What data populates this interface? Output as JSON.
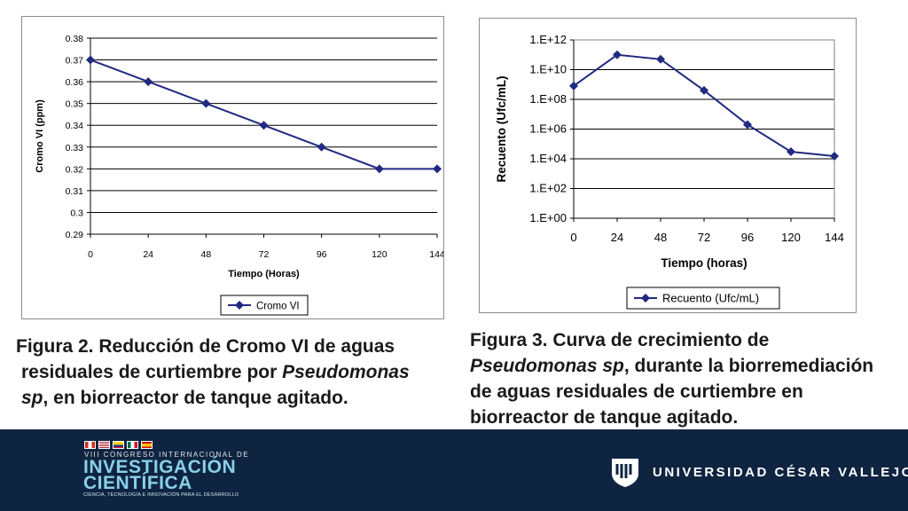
{
  "chart_data": [
    {
      "type": "line",
      "title": "",
      "xlabel": "Tiempo (Horas)",
      "ylabel": "Cromo VI (ppm)",
      "x": [
        0,
        24,
        48,
        72,
        96,
        120,
        144
      ],
      "x_tick_labels": [
        "0",
        "24",
        "48",
        "72",
        "96",
        "120",
        "144"
      ],
      "y_tick_labels": [
        "0.38",
        "0.37",
        "0.36",
        "0.35",
        "0.34",
        "0.33",
        "0.32",
        "0.31",
        "0.3",
        "0.29"
      ],
      "ylim": [
        0.29,
        0.38
      ],
      "grid": true,
      "legend_position": "bottom",
      "series": [
        {
          "name": "Cromo VI",
          "values": [
            0.37,
            0.36,
            0.35,
            0.34,
            0.33,
            0.32,
            0.32
          ]
        }
      ],
      "colors": {
        "line": "#1f2a80",
        "axis": "#000000",
        "grid": "#000000"
      }
    },
    {
      "type": "line",
      "title": "",
      "xlabel": "Tiempo (horas)",
      "ylabel": "Recuento (Ufc/mL)",
      "y_scale": "log",
      "x": [
        0,
        24,
        48,
        72,
        96,
        120,
        144
      ],
      "x_tick_labels": [
        "0",
        "24",
        "48",
        "72",
        "96",
        "120",
        "144"
      ],
      "y_tick_labels": [
        "1.E+12",
        "1.E+10",
        "1.E+08",
        "1.E+06",
        "1.E+04",
        "1.E+02",
        "1.E+00"
      ],
      "ylim": [
        1,
        1000000000000.0
      ],
      "grid": true,
      "legend_position": "bottom",
      "series": [
        {
          "name": "Recuento (Ufc/mL)",
          "values": [
            800000000.0,
            100000000000.0,
            50000000000.0,
            400000000.0,
            2000000.0,
            30000.0,
            15000.0
          ]
        }
      ],
      "colors": {
        "line": "#1f2a80",
        "axis": "#000000",
        "grid": "#000000",
        "plot_bg": "#ffffff"
      }
    }
  ],
  "captions": {
    "figure2": {
      "line1": "Figura 2. Reducción de Cromo VI de aguas",
      "line2_a": "residuales  de curtiembre por ",
      "line2_b": "Pseudomonas",
      "line3_a": "sp",
      "line3_b": ", en biorreactor de tanque agitado."
    },
    "figure3": {
      "line1": "Figura 3. Curva de crecimiento de",
      "line2_a": "Pseudomonas sp",
      "line2_b": ", durante la biorremediación",
      "line3": "de aguas residuales de curtiembre en",
      "line4": "biorreactor de tanque agitado."
    }
  },
  "footer": {
    "congress_line": "VIII CONGRESO INTERNACIONAL DE",
    "congress_title1": "INVESTIGACIÓN",
    "congress_title2": "CIENTÍFICA",
    "congress_tagline": "CIENCIA, TECNOLOGÍA E INNOVACIÓN PARA EL DESARROLLO",
    "university_name": "UNIVERSIDAD CÉSAR VALLEJO",
    "logo_icon": "ucv-shield-icon",
    "flags_icon": "country-flags-icon",
    "background_color": "#0e2441",
    "accent_color": "#8ad0e8"
  }
}
